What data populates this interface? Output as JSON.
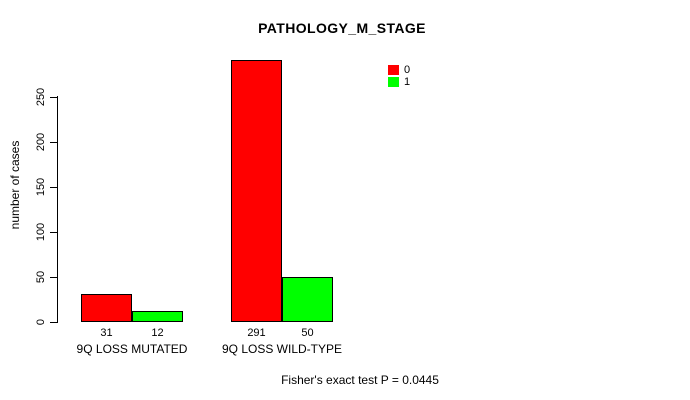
{
  "figure": {
    "background": "#ffffff",
    "text_color": "#000000"
  },
  "chart_data": {
    "type": "bar",
    "title": "PATHOLOGY_M_STAGE",
    "xlabel": "",
    "ylabel": "number of cases",
    "ylim": [
      0,
      295
    ],
    "yticks": [
      0,
      50,
      100,
      150,
      200,
      250
    ],
    "grid": false,
    "legend_position": "top-right",
    "categories": [
      "9Q LOSS MUTATED",
      "9Q LOSS WILD-TYPE"
    ],
    "series": [
      {
        "name": "0",
        "color": "#ff0000",
        "values": [
          31,
          291
        ]
      },
      {
        "name": "1",
        "color": "#00ff00",
        "values": [
          12,
          50
        ]
      }
    ],
    "caption": "Fisher's exact test P = 0.0445"
  }
}
